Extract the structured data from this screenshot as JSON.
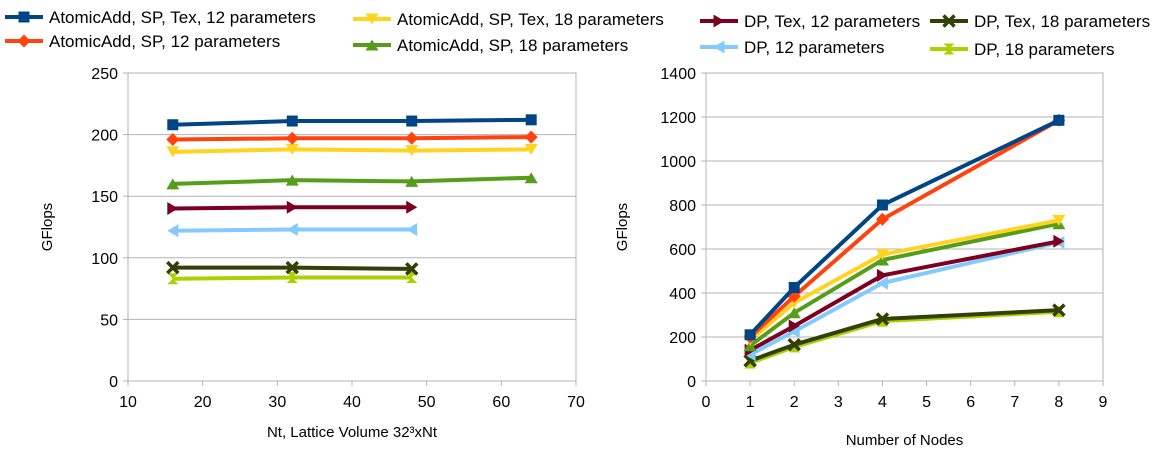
{
  "legend": [
    {
      "label": "AtomicAdd, SP, Tex, 12 parameters",
      "color": "#004586",
      "marker": "square"
    },
    {
      "label": "AtomicAdd, SP, 12 parameters",
      "color": "#ff420e",
      "marker": "diamond"
    },
    {
      "label": "AtomicAdd, SP, Tex, 18 parameters",
      "color": "#ffd320",
      "marker": "triangle-down"
    },
    {
      "label": "AtomicAdd, SP, 18 parameters",
      "color": "#579d1c",
      "marker": "triangle-up"
    },
    {
      "label": "DP, Tex, 12 parameters",
      "color": "#7e0021",
      "marker": "triangle-right"
    },
    {
      "label": "DP, 12 parameters",
      "color": "#83caff",
      "marker": "triangle-left"
    },
    {
      "label": "DP, Tex, 18 parameters",
      "color": "#314004",
      "marker": "x"
    },
    {
      "label": "DP, 18 parameters",
      "color": "#aecf00",
      "marker": "hourglass"
    }
  ],
  "chart_data": [
    {
      "type": "line",
      "xlabel": "Nt, Lattice Volume 32³xNt",
      "ylabel": "GFlops",
      "xlim": [
        10,
        70
      ],
      "ylim": [
        0,
        250
      ],
      "xticks": [
        10,
        20,
        30,
        40,
        50,
        60,
        70
      ],
      "yticks": [
        0,
        50,
        100,
        150,
        200,
        250
      ],
      "grid": "horizontal",
      "series": [
        {
          "name": "AtomicAdd, SP, Tex, 12 parameters",
          "x": [
            16,
            32,
            48,
            64
          ],
          "y": [
            208,
            211,
            211,
            212
          ]
        },
        {
          "name": "AtomicAdd, SP, 12 parameters",
          "x": [
            16,
            32,
            48,
            64
          ],
          "y": [
            196,
            197,
            197,
            198
          ]
        },
        {
          "name": "AtomicAdd, SP, Tex, 18 parameters",
          "x": [
            16,
            32,
            48,
            64
          ],
          "y": [
            186,
            188,
            187,
            188
          ]
        },
        {
          "name": "AtomicAdd, SP, 18 parameters",
          "x": [
            16,
            32,
            48,
            64
          ],
          "y": [
            160,
            163,
            162,
            165
          ]
        },
        {
          "name": "DP, Tex, 12 parameters",
          "x": [
            16,
            32,
            48
          ],
          "y": [
            140,
            141,
            141
          ]
        },
        {
          "name": "DP, 12 parameters",
          "x": [
            16,
            32,
            48
          ],
          "y": [
            122,
            123,
            123
          ]
        },
        {
          "name": "DP, Tex, 18 parameters",
          "x": [
            16,
            32,
            48
          ],
          "y": [
            92,
            92,
            91
          ]
        },
        {
          "name": "DP, 18 parameters",
          "x": [
            16,
            32,
            48
          ],
          "y": [
            83,
            84,
            84
          ]
        }
      ]
    },
    {
      "type": "line",
      "xlabel": "Number of Nodes",
      "ylabel": "GFlops",
      "xlim": [
        0,
        9
      ],
      "ylim": [
        0,
        1400
      ],
      "xticks": [
        0,
        1,
        2,
        3,
        4,
        5,
        6,
        7,
        8,
        9
      ],
      "yticks": [
        0,
        200,
        400,
        600,
        800,
        1000,
        1200,
        1400
      ],
      "grid": "horizontal",
      "series": [
        {
          "name": "AtomicAdd, SP, Tex, 12 parameters",
          "x": [
            1,
            2,
            4,
            8
          ],
          "y": [
            210,
            425,
            800,
            1185
          ]
        },
        {
          "name": "AtomicAdd, SP, 12 parameters",
          "x": [
            1,
            2,
            4,
            8
          ],
          "y": [
            200,
            385,
            735,
            1185
          ]
        },
        {
          "name": "AtomicAdd, SP, Tex, 18 parameters",
          "x": [
            1,
            2,
            4,
            8
          ],
          "y": [
            185,
            355,
            575,
            730
          ]
        },
        {
          "name": "AtomicAdd, SP, 18 parameters",
          "x": [
            1,
            2,
            4,
            8
          ],
          "y": [
            160,
            310,
            550,
            715
          ]
        },
        {
          "name": "DP, Tex, 12 parameters",
          "x": [
            1,
            2,
            4,
            8
          ],
          "y": [
            140,
            250,
            480,
            635
          ]
        },
        {
          "name": "DP, 12 parameters",
          "x": [
            1,
            2,
            4,
            8
          ],
          "y": [
            120,
            225,
            445,
            630
          ]
        },
        {
          "name": "DP, Tex, 18 parameters",
          "x": [
            1,
            2,
            4,
            8
          ],
          "y": [
            92,
            165,
            282,
            322
          ]
        },
        {
          "name": "DP, 18 parameters",
          "x": [
            1,
            2,
            4,
            8
          ],
          "y": [
            82,
            155,
            272,
            315
          ]
        }
      ]
    }
  ]
}
